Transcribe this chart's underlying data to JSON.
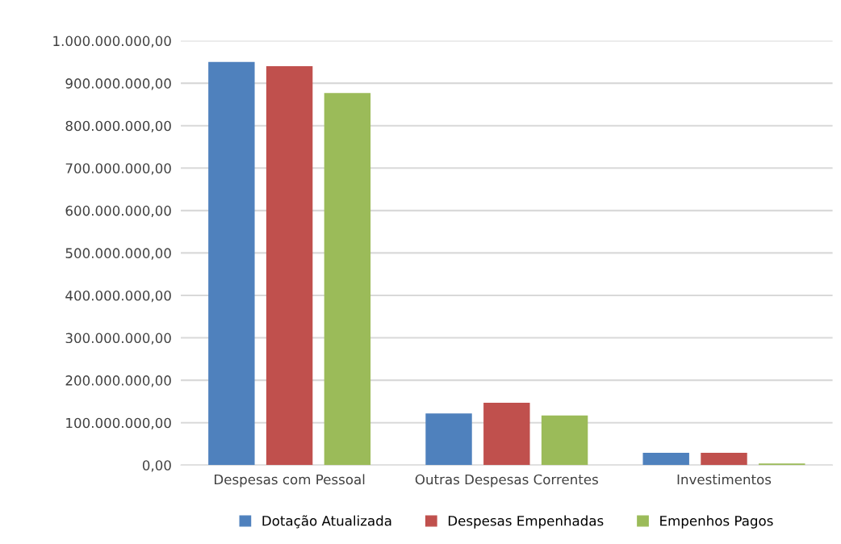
{
  "chart_data": {
    "type": "bar",
    "categories": [
      "Despesas com Pessoal",
      "Outras Despesas Correntes",
      "Investimentos"
    ],
    "series": [
      {
        "name": "Dotação Atualizada",
        "color": "#4f81bd",
        "values": [
          950000000,
          122000000,
          29000000
        ]
      },
      {
        "name": "Despesas Empenhadas",
        "color": "#c0504d",
        "values": [
          940000000,
          147000000,
          29000000
        ]
      },
      {
        "name": "Empenhos Pagos",
        "color": "#9bbb59",
        "values": [
          877000000,
          117000000,
          4000000
        ]
      }
    ],
    "ylim": [
      0,
      1000000000
    ],
    "yticks": [
      {
        "value": 0,
        "label": "0,00"
      },
      {
        "value": 100000000,
        "label": "100.000.000,00"
      },
      {
        "value": 200000000,
        "label": "200.000.000,00"
      },
      {
        "value": 300000000,
        "label": "300.000.000,00"
      },
      {
        "value": 400000000,
        "label": "400.000.000,00"
      },
      {
        "value": 500000000,
        "label": "500.000.000,00"
      },
      {
        "value": 600000000,
        "label": "600.000.000,00"
      },
      {
        "value": 700000000,
        "label": "700.000.000,00"
      },
      {
        "value": 800000000,
        "label": "800.000.000,00"
      },
      {
        "value": 900000000,
        "label": "900.000.000,00"
      },
      {
        "value": 1000000000,
        "label": "1.000.000.000,00"
      }
    ],
    "grid": "y",
    "legend": "bottom"
  }
}
